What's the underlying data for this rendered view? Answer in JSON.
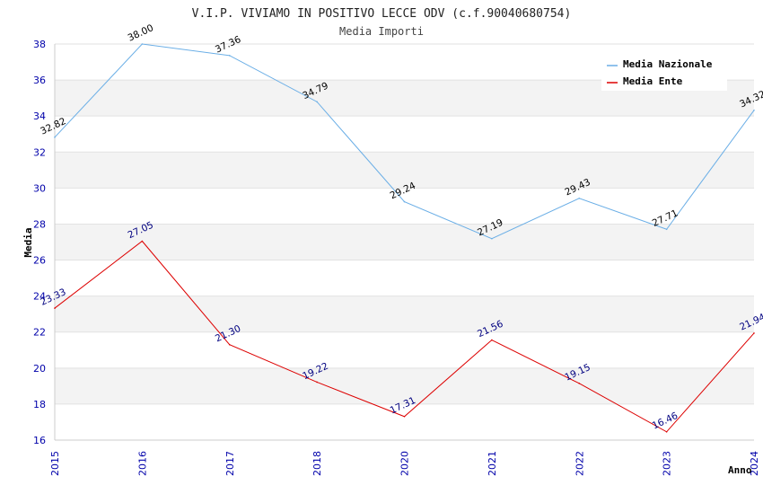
{
  "chart_data": {
    "type": "line",
    "title": "V.I.P. VIVIAMO IN POSITIVO LECCE ODV (c.f.90040680754)",
    "subtitle": "Media Importi",
    "xlabel": "Anno",
    "ylabel": "Media",
    "x": [
      "2015",
      "2016",
      "2017",
      "2018",
      "2020",
      "2021",
      "2022",
      "2023",
      "2024"
    ],
    "ylim": [
      16,
      38
    ],
    "yticks": [
      16,
      18,
      20,
      22,
      24,
      26,
      28,
      30,
      32,
      34,
      36,
      38
    ],
    "grid": "horizontal bands",
    "legend_position": "top-right",
    "series": [
      {
        "name": "Media Nazionale",
        "color": "#6aaee6",
        "label_color": "#000000",
        "values": [
          32.82,
          38.0,
          37.36,
          34.79,
          29.24,
          27.19,
          29.43,
          27.71,
          34.32
        ],
        "labels": [
          "32.82",
          "38.00",
          "37.36",
          "34.79",
          "29.24",
          "27.19",
          "29.43",
          "27.71",
          "34.32"
        ]
      },
      {
        "name": "Media Ente",
        "color": "#dd0000",
        "label_color": "#000080",
        "values": [
          23.33,
          27.05,
          21.3,
          19.22,
          17.31,
          21.56,
          19.15,
          16.46,
          21.94
        ],
        "labels": [
          "23.33",
          "27.05",
          "21.30",
          "19.22",
          "17.31",
          "21.56",
          "19.15",
          "16.46",
          "21.94"
        ]
      }
    ]
  }
}
